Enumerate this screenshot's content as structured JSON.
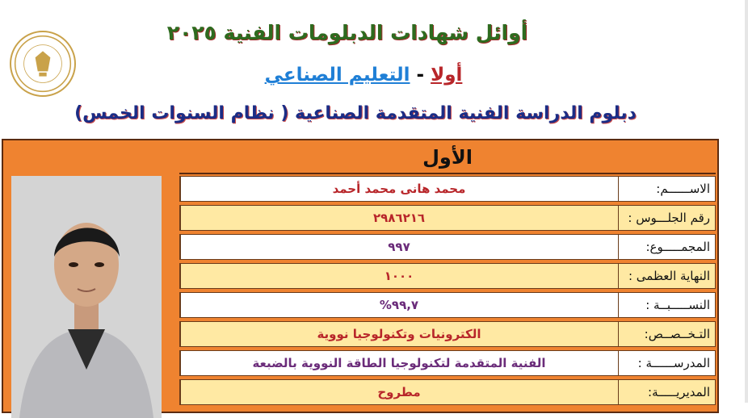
{
  "header": {
    "title": "أوائل شهادات الدبلومات الفنية ٢٠٢٥",
    "subtitle_part1": "أولا",
    "subtitle_sep": " - ",
    "subtitle_part2": "التعليم الصناعي",
    "diploma": "دبلوم الدراسة الفنية المتقدمة الصناعية ( نظام السنوات الخمس)"
  },
  "logo": {
    "icon": "ministry-of-education-seal"
  },
  "card": {
    "rank": "الأول",
    "rows": [
      {
        "label": "الاســــــم:",
        "value": "محمد هانى محمد أحمد"
      },
      {
        "label": "رقم الجلـــوس :",
        "value": "٢٩٨٦٢١٦"
      },
      {
        "label": "المجمـــــوع:",
        "value": "٩٩٧"
      },
      {
        "label": "النهاية العظمى :",
        "value": "١٠٠٠"
      },
      {
        "label": "النســـــبــة :",
        "value": "٩٩,٧%"
      },
      {
        "label": "التـخــصــص:",
        "value": "الكترونيات وتكنولوجيا نووية"
      },
      {
        "label": "المدرســــــة :",
        "value": "الفنية المتقدمة لتكنولوجيا الطاقة النووية بالضبعة"
      },
      {
        "label": "المديريـــــة:",
        "value": "مطروح"
      }
    ]
  },
  "colors": {
    "accent_orange": "#ef8330",
    "row_yellow": "#ffe9a3",
    "title_green": "#2e6b1f",
    "diploma_blue": "#1b2d86"
  }
}
